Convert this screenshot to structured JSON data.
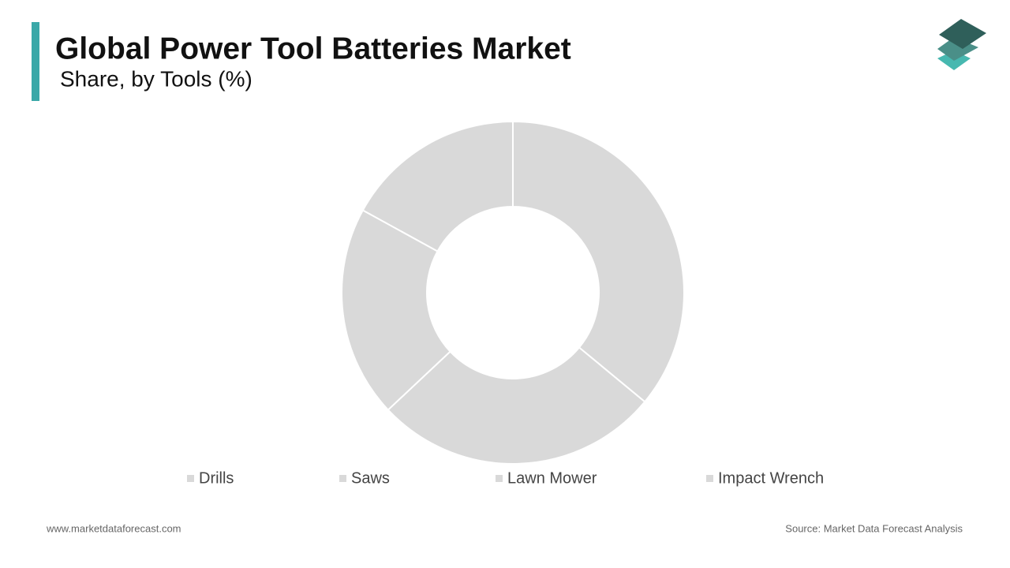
{
  "chart_data": {
    "type": "donut",
    "title": "Global Power Tool Batteries Market",
    "subtitle": "Share, by Tools (%)",
    "categories": [
      "Drills",
      "Saws",
      "Lawn Mower",
      "Impact Wrench"
    ],
    "values": [
      36,
      27,
      20,
      17
    ],
    "colors": [
      "#d9d9d9",
      "#d9d9d9",
      "#d9d9d9",
      "#d9d9d9"
    ],
    "legend": "bottom"
  },
  "footer": {
    "website": "www.marketdataforecast.com",
    "source": "Source: Market Data Forecast Analysis"
  }
}
